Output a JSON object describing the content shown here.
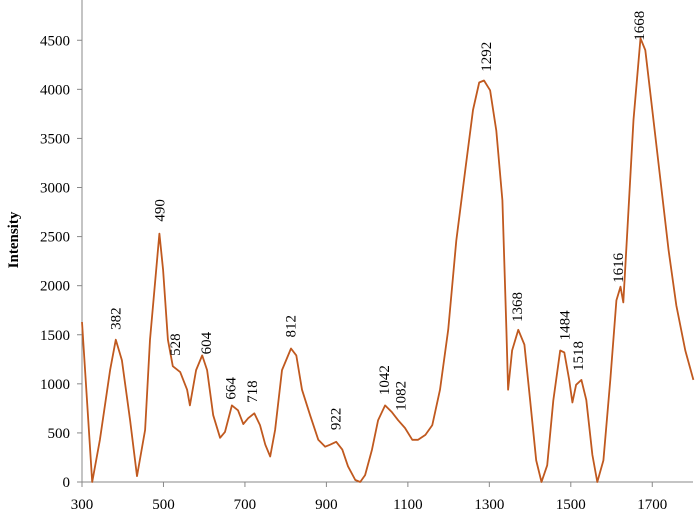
{
  "chart_data": {
    "type": "line",
    "y_label": "Intensity",
    "x": [
      300,
      325,
      344,
      369,
      383,
      398,
      418,
      435,
      455,
      467,
      490,
      499,
      511,
      523,
      541,
      558,
      565,
      580,
      595,
      607,
      622,
      639,
      651,
      668,
      683,
      696,
      708,
      723,
      737,
      750,
      762,
      774,
      791,
      813,
      826,
      840,
      860,
      880,
      897,
      909,
      924,
      939,
      953,
      971,
      983,
      995,
      1012,
      1027,
      1044,
      1061,
      1076,
      1093,
      1111,
      1125,
      1143,
      1160,
      1179,
      1199,
      1219,
      1241,
      1260,
      1275,
      1287,
      1302,
      1317,
      1332,
      1342,
      1346,
      1356,
      1371,
      1386,
      1400,
      1415,
      1428,
      1442,
      1457,
      1474,
      1484,
      1496,
      1504,
      1513,
      1526,
      1538,
      1553,
      1565,
      1580,
      1597,
      1612,
      1622,
      1629,
      1639,
      1654,
      1671,
      1683,
      1700,
      1720,
      1740,
      1759,
      1781,
      1801
    ],
    "values": [
      1630,
      0,
      430,
      1140,
      1450,
      1240,
      630,
      60,
      530,
      1450,
      2530,
      2160,
      1450,
      1180,
      1120,
      940,
      780,
      1140,
      1290,
      1140,
      680,
      450,
      510,
      780,
      730,
      590,
      650,
      700,
      580,
      380,
      260,
      530,
      1140,
      1360,
      1290,
      940,
      680,
      430,
      360,
      380,
      410,
      330,
      160,
      20,
      0,
      70,
      330,
      630,
      780,
      710,
      630,
      550,
      430,
      430,
      480,
      580,
      940,
      1550,
      2460,
      3180,
      3790,
      4070,
      4090,
      3990,
      3580,
      2870,
      1550,
      940,
      1340,
      1550,
      1400,
      835,
      220,
      0,
      170,
      830,
      1340,
      1320,
      1040,
      810,
      990,
      1040,
      835,
      275,
      0,
      220,
      1040,
      1850,
      1990,
      1830,
      2570,
      3690,
      4520,
      4400,
      3790,
      3080,
      2360,
      1800,
      1340,
      1040
    ],
    "color": "#c0591f",
    "annotations": [
      "382",
      "490",
      "528",
      "604",
      "664",
      "718",
      "812",
      "922",
      "1042",
      "1082",
      "1292",
      "1368",
      "1484",
      "1518",
      "1616",
      "1668"
    ],
    "xlim": [
      300,
      1800
    ],
    "xticks": [
      300,
      500,
      700,
      900,
      1100,
      1300,
      1500,
      1700
    ],
    "ylim": [
      0,
      4900
    ],
    "yticks": [
      0,
      500,
      1000,
      1500,
      2000,
      2500,
      3000,
      3500,
      4000,
      4500
    ]
  }
}
